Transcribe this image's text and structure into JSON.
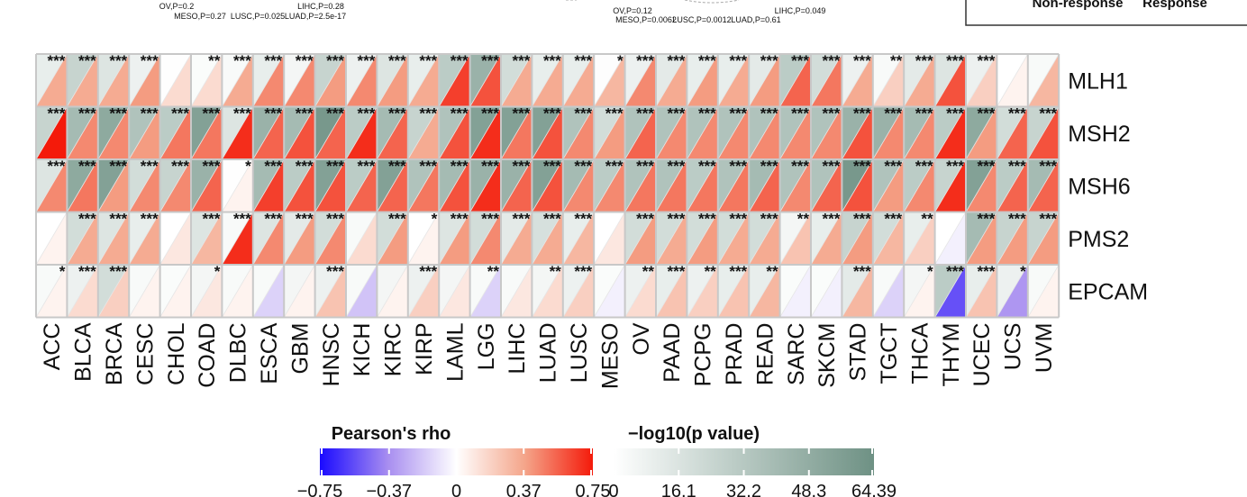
{
  "top_annotations": {
    "left": [
      {
        "text": "OV,P=0.2",
        "row": 1
      },
      {
        "text": "LIHC,P=0.28",
        "row": 1
      },
      {
        "text": "MESO,P=0.27",
        "row": 2
      },
      {
        "text": "LUSC,P=0.025",
        "row": 2
      },
      {
        "text": "LUAD,P=2.5e-17",
        "row": 2
      }
    ],
    "middle": [
      {
        "text": "OV,P=0.12",
        "row": 1
      },
      {
        "text": "LIHC,P=0.049",
        "row": 1
      },
      {
        "text": "MESO,P=0.0062",
        "row": 2
      },
      {
        "text": "LUSC,P=0.0012",
        "row": 2
      },
      {
        "text": "LUAD,P=0.61",
        "row": 2
      }
    ],
    "right_legend": [
      "Non-response",
      "Response"
    ]
  },
  "chart_data": {
    "type": "heatmap",
    "title": "",
    "categories": [
      "ACC",
      "BLCA",
      "BRCA",
      "CESC",
      "CHOL",
      "COAD",
      "DLBC",
      "ESCA",
      "GBM",
      "HNSC",
      "KICH",
      "KIRC",
      "KIRP",
      "LAML",
      "LGG",
      "LIHC",
      "LUAD",
      "LUSC",
      "MESO",
      "OV",
      "PAAD",
      "PCPG",
      "PRAD",
      "READ",
      "SARC",
      "SKCM",
      "STAD",
      "TGCT",
      "THCA",
      "THYM",
      "UCEC",
      "UCS",
      "UVM"
    ],
    "rows": [
      "MLH1",
      "MSH2",
      "MSH6",
      "PMS2",
      "EPCAM"
    ],
    "rho": [
      [
        0.35,
        0.35,
        0.35,
        0.4,
        0.15,
        0.15,
        0.35,
        0.45,
        0.45,
        0.4,
        0.45,
        0.4,
        0.35,
        0.65,
        0.6,
        0.35,
        0.35,
        0.35,
        0.3,
        0.45,
        0.35,
        0.4,
        0.35,
        0.4,
        0.55,
        0.5,
        0.35,
        0.2,
        0.35,
        0.6,
        0.2,
        0.05,
        0.3
      ],
      [
        0.75,
        0.45,
        0.45,
        0.4,
        0.5,
        0.5,
        0.7,
        0.55,
        0.6,
        0.55,
        0.7,
        0.55,
        0.35,
        0.6,
        0.7,
        0.5,
        0.6,
        0.45,
        0.4,
        0.55,
        0.45,
        0.45,
        0.45,
        0.45,
        0.45,
        0.45,
        0.6,
        0.45,
        0.45,
        0.7,
        0.4,
        0.55,
        0.6
      ],
      [
        0.45,
        0.5,
        0.4,
        0.45,
        0.45,
        0.55,
        0.05,
        0.65,
        0.6,
        0.6,
        0.55,
        0.55,
        0.5,
        0.6,
        0.7,
        0.55,
        0.6,
        0.45,
        0.45,
        0.5,
        0.5,
        0.5,
        0.5,
        0.55,
        0.45,
        0.55,
        0.6,
        0.4,
        0.45,
        0.7,
        0.45,
        0.55,
        0.55
      ],
      [
        0.05,
        0.35,
        0.35,
        0.35,
        0.1,
        0.3,
        0.7,
        0.45,
        0.4,
        0.45,
        0.15,
        0.4,
        0.05,
        0.4,
        0.45,
        0.35,
        0.35,
        0.3,
        0.1,
        0.4,
        0.35,
        0.4,
        0.35,
        0.35,
        0.25,
        0.35,
        0.4,
        0.3,
        0.2,
        -0.05,
        0.4,
        0.4,
        0.4
      ],
      [
        0.05,
        0.15,
        0.2,
        0.05,
        0.05,
        0.1,
        0.05,
        -0.15,
        0.05,
        0.25,
        -0.2,
        0.05,
        0.2,
        0.1,
        -0.15,
        0.1,
        0.15,
        0.2,
        -0.05,
        0.15,
        0.25,
        0.2,
        0.25,
        0.3,
        -0.05,
        -0.05,
        0.3,
        -0.15,
        0.05,
        -0.55,
        0.25,
        -0.35,
        0.05
      ]
    ],
    "neglog10p": [
      [
        10,
        25,
        15,
        8,
        0.5,
        2,
        3,
        10,
        5,
        25,
        8,
        15,
        10,
        30,
        45,
        20,
        10,
        10,
        1,
        8,
        12,
        10,
        10,
        12,
        30,
        20,
        8,
        3,
        12,
        15,
        8,
        0,
        3
      ],
      [
        25,
        40,
        50,
        35,
        30,
        55,
        15,
        45,
        40,
        60,
        30,
        40,
        25,
        35,
        55,
        55,
        55,
        35,
        20,
        35,
        35,
        35,
        35,
        35,
        35,
        35,
        45,
        45,
        40,
        30,
        50,
        20,
        25
      ],
      [
        15,
        50,
        55,
        20,
        25,
        45,
        0.5,
        40,
        30,
        55,
        30,
        55,
        35,
        40,
        45,
        45,
        55,
        40,
        30,
        35,
        35,
        30,
        35,
        40,
        35,
        35,
        60,
        35,
        30,
        25,
        55,
        30,
        40
      ],
      [
        0,
        20,
        15,
        10,
        0,
        15,
        3,
        15,
        12,
        20,
        3,
        20,
        0,
        15,
        20,
        12,
        18,
        10,
        0,
        20,
        20,
        20,
        20,
        20,
        5,
        10,
        25,
        20,
        10,
        0,
        40,
        25,
        25
      ],
      [
        3,
        8,
        20,
        3,
        2,
        5,
        3,
        3,
        5,
        8,
        3,
        5,
        8,
        5,
        3,
        3,
        5,
        8,
        2,
        8,
        10,
        8,
        10,
        10,
        2,
        2,
        12,
        3,
        5,
        30,
        10,
        8,
        3
      ]
    ],
    "significance": [
      [
        "***",
        "***",
        "***",
        "***",
        "",
        "**",
        "***",
        "***",
        "***",
        "***",
        "***",
        "***",
        "***",
        "***",
        "***",
        "***",
        "***",
        "***",
        "*",
        "***",
        "***",
        "***",
        "***",
        "***",
        "***",
        "***",
        "***",
        "**",
        "***",
        "***",
        "***",
        "",
        ""
      ],
      [
        "***",
        "***",
        "***",
        "***",
        "***",
        "***",
        "***",
        "***",
        "***",
        "***",
        "***",
        "***",
        "***",
        "***",
        "***",
        "***",
        "***",
        "***",
        "***",
        "***",
        "***",
        "***",
        "***",
        "***",
        "***",
        "***",
        "***",
        "***",
        "***",
        "***",
        "***",
        "***",
        "***"
      ],
      [
        "***",
        "***",
        "***",
        "***",
        "***",
        "***",
        "*",
        "***",
        "***",
        "***",
        "***",
        "***",
        "***",
        "***",
        "***",
        "***",
        "***",
        "***",
        "***",
        "***",
        "***",
        "***",
        "***",
        "***",
        "***",
        "***",
        "***",
        "***",
        "***",
        "***",
        "***",
        "***",
        "***"
      ],
      [
        "",
        "***",
        "***",
        "***",
        "",
        "***",
        "***",
        "***",
        "***",
        "***",
        "",
        "***",
        "*",
        "***",
        "***",
        "***",
        "***",
        "***",
        "",
        "***",
        "***",
        "***",
        "***",
        "***",
        "**",
        "***",
        "***",
        "***",
        "**",
        "",
        "***",
        "***",
        "***"
      ],
      [
        "*",
        "***",
        "***",
        "",
        "",
        "*",
        "",
        "",
        "",
        "***",
        "",
        "",
        "***",
        "",
        "**",
        "",
        "**",
        "***",
        "",
        "**",
        "***",
        "**",
        "***",
        "**",
        "",
        "",
        "***",
        "",
        "*",
        "***",
        "***",
        "*",
        ""
      ]
    ],
    "legend_rho": {
      "title": "Pearson's rho",
      "ticks": [
        -0.75,
        -0.37,
        0,
        0.37,
        0.75
      ],
      "tick_labels": [
        "−0.75",
        "−0.37",
        "0",
        "0.37",
        "0.75"
      ],
      "range": [
        -0.75,
        0.75
      ]
    },
    "legend_p": {
      "title": "−log10(p value)",
      "ticks": [
        0,
        16.1,
        32.2,
        48.3,
        64.39
      ],
      "tick_labels": [
        "0",
        "16.1",
        "32.2",
        "48.3",
        "64.39"
      ],
      "range": [
        0,
        64.39
      ]
    }
  },
  "colors": {
    "neg_strong": "#1a0aff",
    "neg_mid": "#a88ef0",
    "zero": "#ffffff",
    "pos_mid": "#f4a58a",
    "pos_strong": "#f41a0a",
    "p_low": "#ffffff",
    "p_high": "#6e9184",
    "grid": "#c8c8c8",
    "star": "#111111"
  }
}
